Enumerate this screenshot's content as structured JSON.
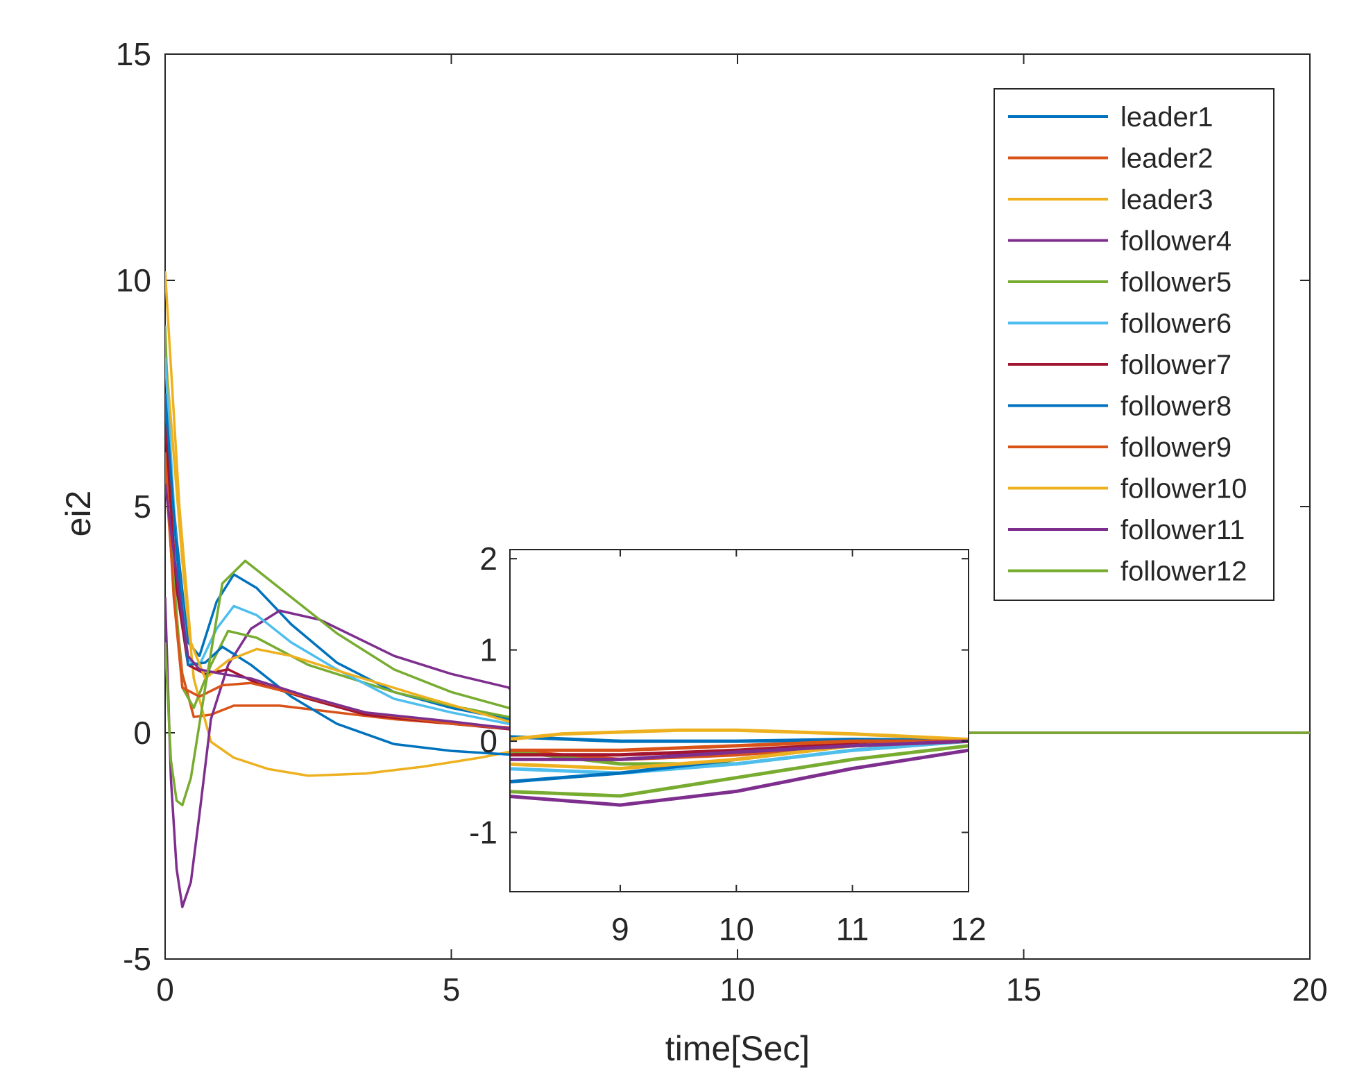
{
  "chart_data": {
    "type": "line",
    "title": "",
    "xlabel": "time[Sec]",
    "ylabel": "ei2",
    "xlim": [
      0,
      20
    ],
    "ylim": [
      -5,
      15
    ],
    "xticks": [
      "0",
      "5",
      "10",
      "15",
      "20"
    ],
    "yticks": [
      "-5",
      "0",
      "5",
      "10",
      "15"
    ],
    "legend_position": "top-right",
    "grid": false,
    "series": [
      {
        "name": "leader1",
        "color": "#0072BD",
        "points": [
          [
            0,
            7.2
          ],
          [
            0.2,
            4.3
          ],
          [
            0.4,
            2.0
          ],
          [
            0.6,
            1.7
          ],
          [
            0.9,
            2.9
          ],
          [
            1.2,
            3.5
          ],
          [
            1.6,
            3.2
          ],
          [
            2.2,
            2.4
          ],
          [
            3,
            1.55
          ],
          [
            4,
            0.9
          ],
          [
            5,
            0.55
          ],
          [
            6,
            0.3
          ],
          [
            7,
            0.17
          ],
          [
            8,
            0.05
          ],
          [
            9,
            0.0
          ],
          [
            10,
            0.0
          ],
          [
            11,
            0.02
          ],
          [
            12,
            0.01
          ],
          [
            14,
            0.0
          ],
          [
            20,
            0.0
          ]
        ]
      },
      {
        "name": "leader2",
        "color": "#D95319",
        "points": [
          [
            0,
            5.8
          ],
          [
            0.15,
            3.2
          ],
          [
            0.3,
            1.3
          ],
          [
            0.5,
            0.35
          ],
          [
            0.8,
            0.4
          ],
          [
            1.2,
            0.6
          ],
          [
            2,
            0.6
          ],
          [
            3,
            0.45
          ],
          [
            4,
            0.3
          ],
          [
            5,
            0.2
          ],
          [
            6,
            0.12
          ],
          [
            7,
            0.05
          ],
          [
            8,
            -0.1
          ],
          [
            9,
            -0.2
          ],
          [
            10,
            -0.15
          ],
          [
            11,
            -0.05
          ],
          [
            12,
            0.0
          ],
          [
            14,
            0.0
          ],
          [
            20,
            0.0
          ]
        ]
      },
      {
        "name": "leader3",
        "color": "#EDB120",
        "points": [
          [
            0,
            8.5
          ],
          [
            0.3,
            3.8
          ],
          [
            0.5,
            1.2
          ],
          [
            0.8,
            -0.2
          ],
          [
            1.2,
            -0.55
          ],
          [
            1.8,
            -0.8
          ],
          [
            2.5,
            -0.95
          ],
          [
            3.5,
            -0.9
          ],
          [
            4.5,
            -0.75
          ],
          [
            5.5,
            -0.55
          ],
          [
            6.5,
            -0.3
          ],
          [
            7.5,
            -0.05
          ],
          [
            8.5,
            0.08
          ],
          [
            9.5,
            0.12
          ],
          [
            10,
            0.12
          ],
          [
            11,
            0.08
          ],
          [
            12,
            0.02
          ],
          [
            14,
            0.0
          ],
          [
            20,
            0.0
          ]
        ]
      },
      {
        "name": "follower4",
        "color": "#7E2F8E",
        "points": [
          [
            0,
            3.0
          ],
          [
            0.1,
            -1.0
          ],
          [
            0.2,
            -3.0
          ],
          [
            0.3,
            -3.85
          ],
          [
            0.45,
            -3.3
          ],
          [
            0.6,
            -1.8
          ],
          [
            0.8,
            0.3
          ],
          [
            1.1,
            1.5
          ],
          [
            1.5,
            2.3
          ],
          [
            2,
            2.7
          ],
          [
            2.7,
            2.5
          ],
          [
            4,
            1.7
          ],
          [
            5,
            1.3
          ],
          [
            6,
            1.0
          ],
          [
            6.5,
            0.3
          ],
          [
            7,
            -0.2
          ],
          [
            8,
            -0.6
          ],
          [
            9,
            -0.7
          ],
          [
            10,
            -0.55
          ],
          [
            11,
            -0.3
          ],
          [
            12,
            -0.1
          ],
          [
            14,
            0.0
          ],
          [
            20,
            0.0
          ]
        ]
      },
      {
        "name": "follower5",
        "color": "#77AC30",
        "points": [
          [
            0,
            9.0
          ],
          [
            0.15,
            3.5
          ],
          [
            0.3,
            1.0
          ],
          [
            0.5,
            0.55
          ],
          [
            0.8,
            1.5
          ],
          [
            1.1,
            2.25
          ],
          [
            1.6,
            2.1
          ],
          [
            2.5,
            1.5
          ],
          [
            4,
            0.9
          ],
          [
            5,
            0.6
          ],
          [
            6,
            0.35
          ],
          [
            7,
            0.1
          ],
          [
            8,
            -0.1
          ],
          [
            9,
            -0.25
          ],
          [
            10,
            -0.25
          ],
          [
            11,
            -0.1
          ],
          [
            12,
            0.0
          ],
          [
            14,
            0.0
          ],
          [
            20,
            0.0
          ]
        ]
      },
      {
        "name": "follower6",
        "color": "#4DBEEE",
        "points": [
          [
            0,
            8.3
          ],
          [
            0.2,
            4.0
          ],
          [
            0.4,
            1.6
          ],
          [
            0.6,
            1.5
          ],
          [
            0.9,
            2.3
          ],
          [
            1.2,
            2.8
          ],
          [
            1.6,
            2.6
          ],
          [
            2.2,
            2.0
          ],
          [
            3,
            1.4
          ],
          [
            4,
            0.75
          ],
          [
            5,
            0.45
          ],
          [
            6,
            0.2
          ],
          [
            7,
            -0.05
          ],
          [
            8,
            -0.3
          ],
          [
            9,
            -0.35
          ],
          [
            10,
            -0.25
          ],
          [
            11,
            -0.1
          ],
          [
            12,
            0.0
          ],
          [
            14,
            0.0
          ],
          [
            20,
            0.0
          ]
        ]
      },
      {
        "name": "follower7",
        "color": "#A2142F",
        "points": [
          [
            0,
            6.8
          ],
          [
            0.2,
            3.2
          ],
          [
            0.4,
            1.5
          ],
          [
            0.7,
            1.3
          ],
          [
            1.1,
            1.4
          ],
          [
            1.6,
            1.1
          ],
          [
            2.5,
            0.75
          ],
          [
            3.5,
            0.4
          ],
          [
            5,
            0.2
          ],
          [
            6,
            0.08
          ],
          [
            7,
            -0.08
          ],
          [
            8,
            -0.15
          ],
          [
            9,
            -0.15
          ],
          [
            10,
            -0.1
          ],
          [
            11,
            -0.03
          ],
          [
            12,
            0.0
          ],
          [
            14,
            0.0
          ],
          [
            20,
            0.0
          ]
        ]
      },
      {
        "name": "follower8",
        "color": "#0072BD",
        "points": [
          [
            0,
            7.5
          ],
          [
            0.2,
            4.0
          ],
          [
            0.4,
            1.5
          ],
          [
            0.7,
            1.55
          ],
          [
            1.0,
            1.9
          ],
          [
            1.5,
            1.5
          ],
          [
            2.2,
            0.8
          ],
          [
            3,
            0.2
          ],
          [
            4,
            -0.25
          ],
          [
            5,
            -0.4
          ],
          [
            6,
            -0.48
          ],
          [
            7,
            -0.5
          ],
          [
            8,
            -0.45
          ],
          [
            9,
            -0.35
          ],
          [
            10,
            -0.2
          ],
          [
            11,
            -0.05
          ],
          [
            12,
            0.0
          ],
          [
            14,
            0.0
          ],
          [
            20,
            0.0
          ]
        ]
      },
      {
        "name": "follower9",
        "color": "#D95319",
        "points": [
          [
            0,
            6.2
          ],
          [
            0.15,
            3.0
          ],
          [
            0.3,
            1.0
          ],
          [
            0.6,
            0.8
          ],
          [
            1.0,
            1.05
          ],
          [
            1.5,
            1.1
          ],
          [
            2.3,
            0.85
          ],
          [
            3.5,
            0.45
          ],
          [
            5,
            0.2
          ],
          [
            6,
            0.1
          ],
          [
            7,
            0.0
          ],
          [
            8,
            -0.1
          ],
          [
            9,
            -0.1
          ],
          [
            10,
            -0.05
          ],
          [
            11,
            0.0
          ],
          [
            12,
            0.0
          ],
          [
            14,
            0.0
          ],
          [
            20,
            0.0
          ]
        ]
      },
      {
        "name": "follower10",
        "color": "#EDB120",
        "points": [
          [
            0,
            10.2
          ],
          [
            0.25,
            5.0
          ],
          [
            0.45,
            2.0
          ],
          [
            0.7,
            1.2
          ],
          [
            1.1,
            1.6
          ],
          [
            1.6,
            1.85
          ],
          [
            2.2,
            1.7
          ],
          [
            3.2,
            1.3
          ],
          [
            4.5,
            0.8
          ],
          [
            6,
            0.25
          ],
          [
            7,
            -0.05
          ],
          [
            8,
            -0.25
          ],
          [
            9,
            -0.3
          ],
          [
            10,
            -0.2
          ],
          [
            11,
            -0.05
          ],
          [
            12,
            0.0
          ],
          [
            14,
            0.0
          ],
          [
            20,
            0.0
          ]
        ]
      },
      {
        "name": "follower11",
        "color": "#7E2F8E",
        "points": [
          [
            0,
            5.5
          ],
          [
            0.2,
            3.5
          ],
          [
            0.4,
            1.7
          ],
          [
            0.6,
            1.4
          ],
          [
            1.0,
            1.3
          ],
          [
            1.5,
            1.2
          ],
          [
            2.5,
            0.8
          ],
          [
            3.5,
            0.45
          ],
          [
            5,
            0.25
          ],
          [
            6,
            0.1
          ],
          [
            7,
            -0.1
          ],
          [
            8,
            -0.2
          ],
          [
            9,
            -0.2
          ],
          [
            10,
            -0.12
          ],
          [
            11,
            -0.05
          ],
          [
            12,
            0.0
          ],
          [
            14,
            0.0
          ],
          [
            20,
            0.0
          ]
        ]
      },
      {
        "name": "follower12",
        "color": "#77AC30",
        "points": [
          [
            0,
            2.0
          ],
          [
            0.1,
            -0.6
          ],
          [
            0.2,
            -1.5
          ],
          [
            0.3,
            -1.6
          ],
          [
            0.45,
            -1.0
          ],
          [
            0.7,
            1.0
          ],
          [
            1.0,
            3.3
          ],
          [
            1.4,
            3.8
          ],
          [
            2,
            3.2
          ],
          [
            3,
            2.2
          ],
          [
            4,
            1.4
          ],
          [
            5,
            0.9
          ],
          [
            6,
            0.55
          ],
          [
            7,
            -0.2
          ],
          [
            8,
            -0.55
          ],
          [
            9,
            -0.6
          ],
          [
            10,
            -0.4
          ],
          [
            11,
            -0.2
          ],
          [
            12,
            -0.05
          ],
          [
            14,
            0.0
          ],
          [
            20,
            0.0
          ]
        ]
      }
    ],
    "inset": {
      "xlim": [
        8.05,
        12
      ],
      "ylim": [
        -1.65,
        2.1
      ],
      "xticks": [
        "9",
        "10",
        "11",
        "12"
      ],
      "yticks": [
        "-1",
        "0",
        "1",
        "2"
      ],
      "series_source": "same as main"
    }
  }
}
